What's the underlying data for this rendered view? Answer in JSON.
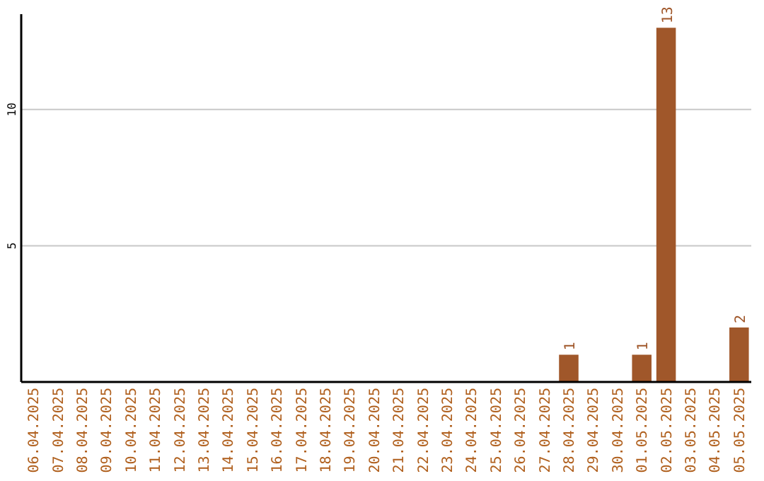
{
  "chart_data": {
    "type": "bar",
    "categories": [
      "06.04.2025",
      "07.04.2025",
      "08.04.2025",
      "09.04.2025",
      "10.04.2025",
      "11.04.2025",
      "12.04.2025",
      "13.04.2025",
      "14.04.2025",
      "15.04.2025",
      "16.04.2025",
      "17.04.2025",
      "18.04.2025",
      "19.04.2025",
      "20.04.2025",
      "21.04.2025",
      "22.04.2025",
      "23.04.2025",
      "24.04.2025",
      "25.04.2025",
      "26.04.2025",
      "27.04.2025",
      "28.04.2025",
      "29.04.2025",
      "30.04.2025",
      "01.05.2025",
      "02.05.2025",
      "03.05.2025",
      "04.05.2025",
      "05.05.2025"
    ],
    "values": [
      0,
      0,
      0,
      0,
      0,
      0,
      0,
      0,
      0,
      0,
      0,
      0,
      0,
      0,
      0,
      0,
      0,
      0,
      0,
      0,
      0,
      0,
      1,
      0,
      0,
      1,
      13,
      0,
      0,
      2
    ],
    "value_labels": [
      null,
      null,
      null,
      null,
      null,
      null,
      null,
      null,
      null,
      null,
      null,
      null,
      null,
      null,
      null,
      null,
      null,
      null,
      null,
      null,
      null,
      null,
      "1",
      null,
      null,
      "1",
      "13",
      null,
      null,
      "2"
    ],
    "color": "#a0572a",
    "ylim": [
      0,
      13.5
    ],
    "yticks": [
      5,
      10
    ],
    "grid": "y"
  }
}
